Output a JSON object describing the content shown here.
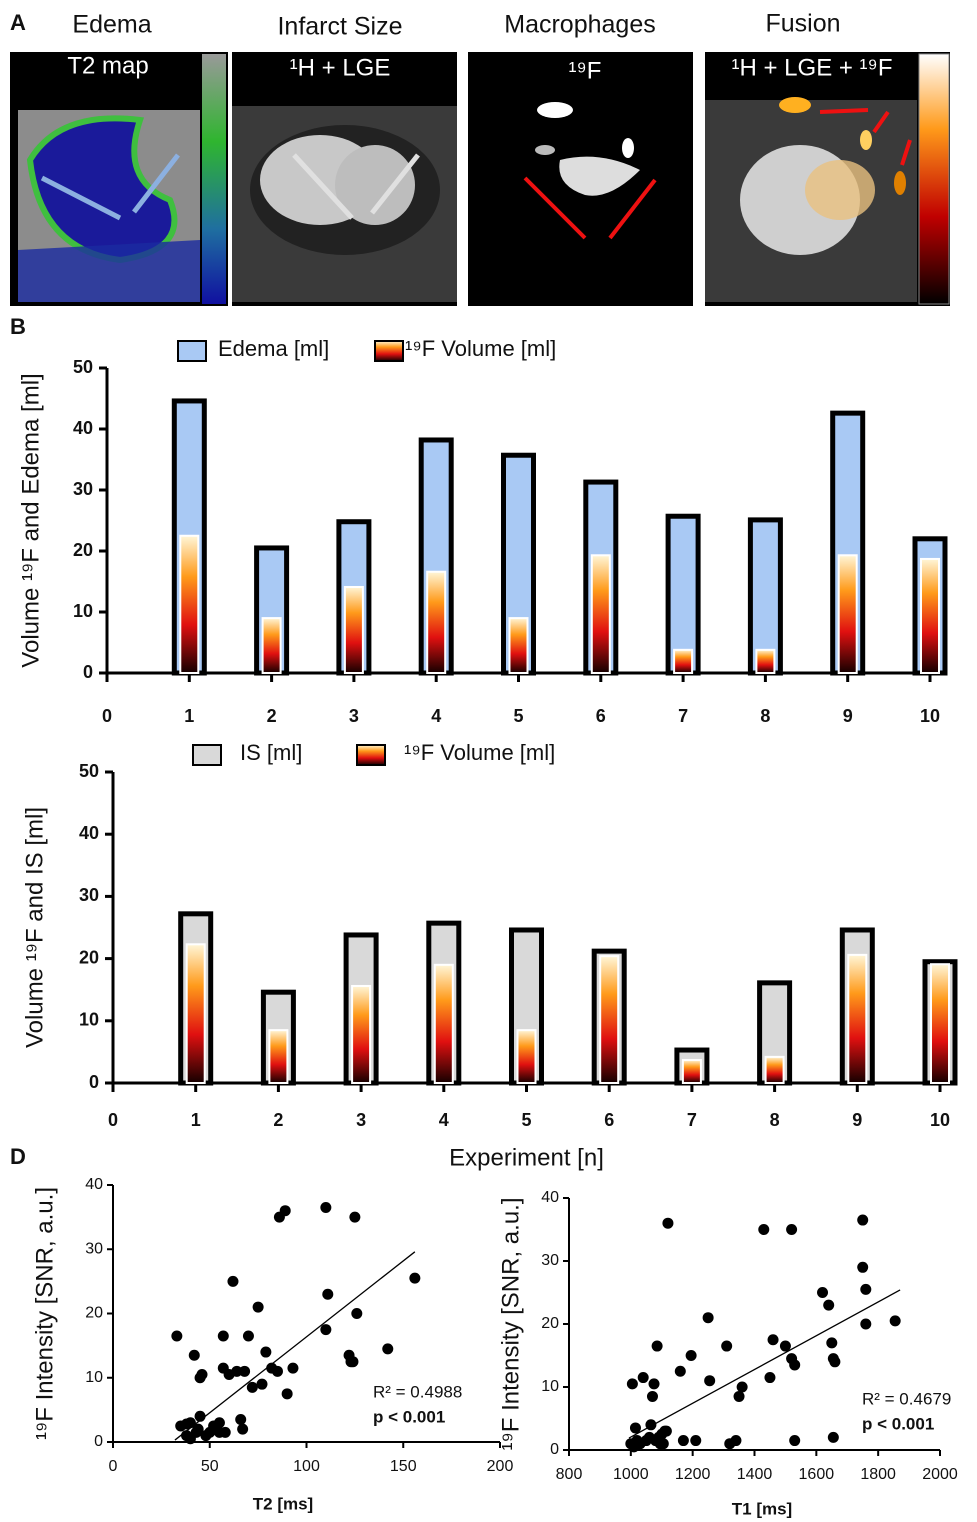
{
  "panel_labels": [
    "A",
    "B",
    "D"
  ],
  "panel_a": {
    "columns": [
      {
        "title": "Edema",
        "image_label": "T2 map"
      },
      {
        "title": "Infarct Size",
        "image_label": "¹H + LGE"
      },
      {
        "title": "Macrophages",
        "image_label": "¹⁹F"
      },
      {
        "title": "Fusion",
        "image_label": "¹H + LGE + ¹⁹F"
      }
    ]
  },
  "chart_data": [
    {
      "type": "bar",
      "y_label": "Volume ¹⁹F and Edema [ml]",
      "x": [
        1,
        2,
        3,
        4,
        5,
        6,
        7,
        8,
        9,
        10
      ],
      "series": [
        {
          "name": "Edema [ml]",
          "color": "#a9c9f4",
          "values": [
            44.6,
            20.5,
            24.8,
            38.2,
            35.7,
            31.3,
            25.7,
            25.1,
            42.6,
            22
          ]
        },
        {
          "name": "¹⁹F Volume [ml]",
          "values": [
            22.5,
            9,
            14.1,
            16.6,
            9,
            19.3,
            3.8,
            3.8,
            19.3,
            18.7
          ]
        }
      ],
      "xlim": [
        0,
        10
      ],
      "xticks": [
        0,
        1,
        2,
        3,
        4,
        5,
        6,
        7,
        8,
        9,
        10
      ],
      "ylim": [
        0,
        50
      ],
      "yticks": [
        0,
        10,
        20,
        30,
        40,
        50
      ]
    },
    {
      "type": "bar",
      "y_label": "Volume ¹⁹F and IS [ml]",
      "x_label": "Experiment [n]",
      "x": [
        1,
        2,
        3,
        4,
        5,
        6,
        7,
        8,
        9,
        10
      ],
      "series": [
        {
          "name": "IS [ml]",
          "color": "#d9d9d9",
          "values": [
            27.2,
            14.6,
            23.8,
            25.7,
            24.6,
            21.2,
            5.3,
            16.1,
            24.6,
            19.5
          ]
        },
        {
          "name": "¹⁹F Volume [ml]",
          "values": [
            22.3,
            8.5,
            15.6,
            19,
            8.5,
            20.4,
            3.7,
            4.2,
            20.6,
            19.1
          ]
        }
      ],
      "xlim": [
        0,
        10
      ],
      "xticks": [
        0,
        1,
        2,
        3,
        4,
        5,
        6,
        7,
        8,
        9,
        10
      ],
      "ylim": [
        0,
        50
      ],
      "yticks": [
        0,
        10,
        20,
        30,
        40,
        50
      ]
    },
    {
      "type": "scatter",
      "x_label": "T2 [ms]",
      "y_label": "¹⁹F Intensity [SNR, a.u.]",
      "annotations": [
        "R² = 0.4988",
        "p < 0.001"
      ],
      "color": "#000000",
      "x": [
        33,
        35,
        38,
        38,
        40,
        40,
        42,
        43,
        44,
        45,
        46,
        45,
        48,
        50,
        52,
        55,
        55,
        57,
        57,
        58,
        60,
        62,
        64,
        66,
        67,
        68,
        70,
        72,
        75,
        77,
        79,
        82,
        85,
        86,
        89,
        90,
        93,
        110,
        111,
        110,
        122,
        123,
        124,
        125,
        126,
        142,
        156
      ],
      "values": [
        16.5,
        2.5,
        2.8,
        1,
        0.5,
        3,
        13.5,
        1.5,
        2,
        10,
        10.5,
        4,
        1,
        1.5,
        2.5,
        1.5,
        3,
        16.5,
        11.5,
        1.5,
        10.5,
        25,
        11,
        3.5,
        2,
        11,
        16.5,
        8.5,
        21,
        9,
        14,
        11.5,
        11,
        35,
        36,
        7.5,
        11.5,
        36.5,
        23,
        17.5,
        13.5,
        12.5,
        12.5,
        35,
        20,
        14.5,
        25.5
      ],
      "trendline": {
        "x": [
          32,
          156
        ],
        "values": [
          0.3,
          29.6
        ]
      },
      "xlim": [
        0,
        200
      ],
      "xticks": [
        0,
        50,
        100,
        150,
        200
      ],
      "ylim": [
        0,
        40
      ],
      "yticks": [
        0,
        10,
        20,
        30,
        40
      ]
    },
    {
      "type": "scatter",
      "x_label": "T1 [ms]",
      "y_label": "¹⁹F Intensity [SNR, a.u.]",
      "annotations": [
        "R² = 0.4679",
        "p < 0.001"
      ],
      "color": "#000000",
      "x": [
        1000,
        1005,
        1010,
        1015,
        1020,
        1030,
        1040,
        1050,
        1060,
        1065,
        1070,
        1075,
        1080,
        1085,
        1090,
        1095,
        1100,
        1105,
        1110,
        1115,
        1120,
        1160,
        1170,
        1195,
        1210,
        1250,
        1255,
        1310,
        1320,
        1340,
        1350,
        1360,
        1430,
        1450,
        1460,
        1500,
        1520,
        1520,
        1530,
        1530,
        1620,
        1640,
        1650,
        1655,
        1655,
        1660,
        1750,
        1750,
        1760,
        1760,
        1855
      ],
      "values": [
        1,
        10.5,
        0.5,
        3.5,
        1.5,
        1,
        11.5,
        1.5,
        2,
        4,
        8.5,
        10.5,
        1.5,
        16.5,
        2,
        1,
        2.5,
        1,
        3,
        3,
        36,
        12.5,
        1.5,
        15,
        1.5,
        21,
        11,
        16.5,
        1,
        1.5,
        8.5,
        10,
        35,
        11.5,
        17.5,
        16.5,
        35,
        14.5,
        1.5,
        13.5,
        25,
        23,
        17,
        2,
        14.5,
        14,
        36.5,
        29,
        25.5,
        20,
        20.5
      ],
      "trendline": {
        "x": [
          994,
          1871
        ],
        "values": [
          1.9,
          25.4
        ]
      },
      "xlim": [
        800,
        2000
      ],
      "xticks": [
        800,
        1000,
        1200,
        1400,
        1600,
        1800,
        2000
      ],
      "ylim": [
        0,
        40
      ],
      "yticks": [
        0,
        10,
        20,
        30,
        40
      ]
    }
  ]
}
